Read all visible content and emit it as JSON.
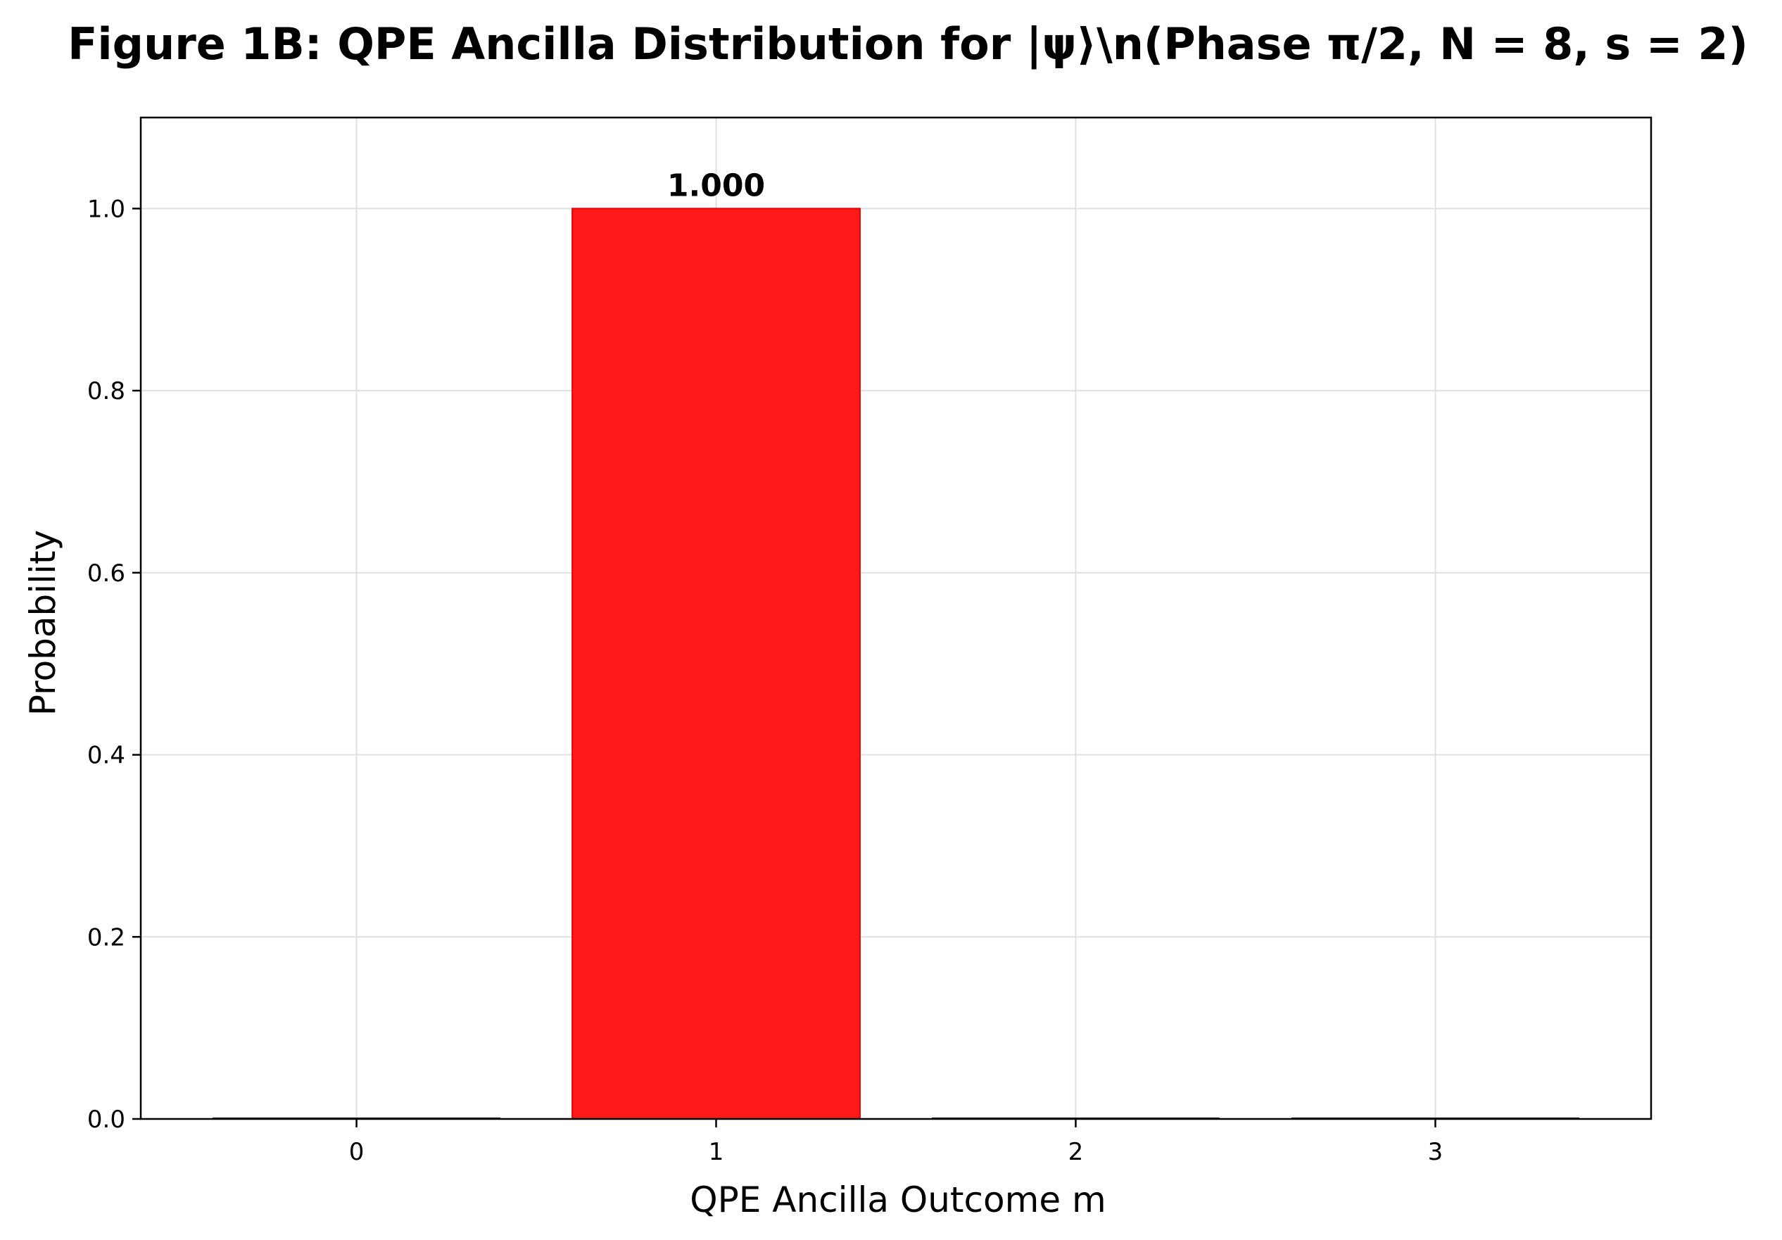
{
  "chart_data": {
    "type": "bar",
    "title": "Figure 1B: QPE Ancilla Distribution for |ψ⟩\\n(Phase π/2, N = 8, s = 2)",
    "xlabel": "QPE Ancilla Outcome m",
    "ylabel": "Probability",
    "categories": [
      "0",
      "1",
      "2",
      "3"
    ],
    "values": [
      0.0,
      1.0,
      0.0,
      0.0
    ],
    "data_labels": [
      "",
      "1.000",
      "",
      ""
    ],
    "ylim": [
      0,
      1.1
    ],
    "yticks": [
      "0.0",
      "0.2",
      "0.4",
      "0.6",
      "0.8",
      "1.0"
    ],
    "grid": true,
    "highlight_index": 1,
    "colors": {
      "highlight": "#ff1a1a",
      "highlight_edge": "#e60000",
      "other_bar": "#d9d9d9",
      "grid": "#e0e0e0",
      "axes": "#000000"
    }
  }
}
